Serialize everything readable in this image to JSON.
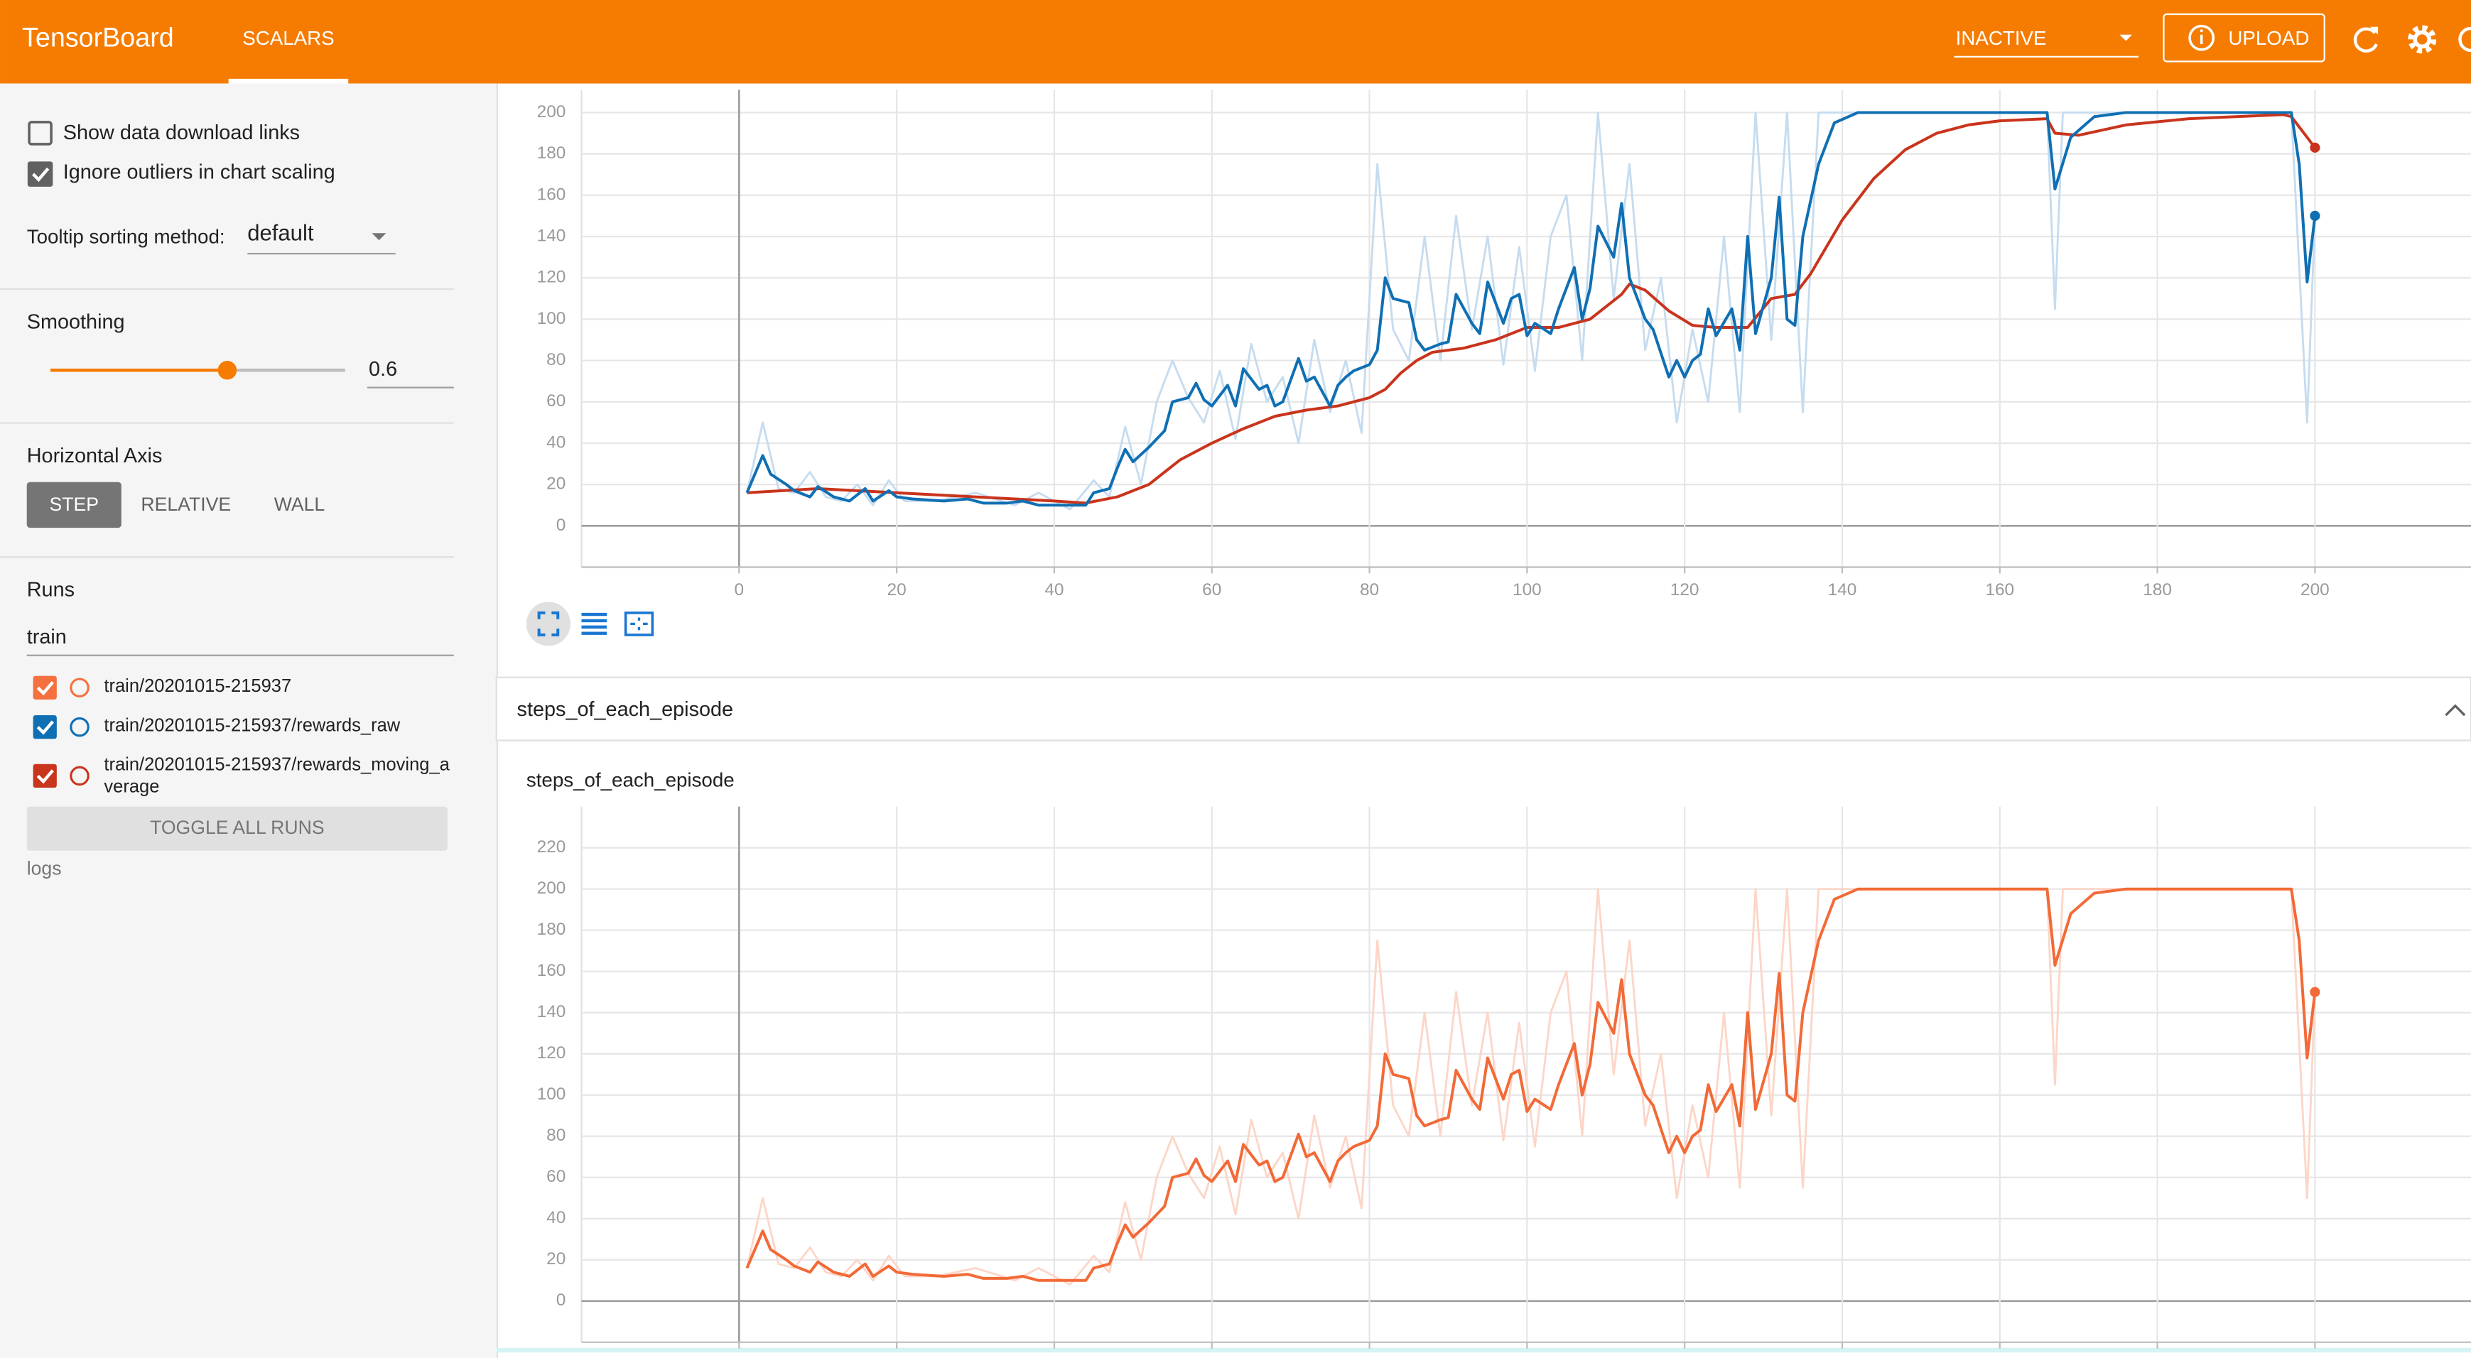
{
  "header": {
    "title": "TensorBoard",
    "tab": "SCALARS",
    "status": "INACTIVE",
    "upload": "UPLOAD"
  },
  "sidebar": {
    "show_download_links": "Show data download links",
    "ignore_outliers": "Ignore outliers in chart scaling",
    "tooltip_label": "Tooltip sorting method:",
    "tooltip_value": "default",
    "smoothing_label": "Smoothing",
    "smoothing_value": 0.6,
    "axis_label": "Horizontal Axis",
    "axis_options": [
      "STEP",
      "RELATIVE",
      "WALL"
    ],
    "runs_label": "Runs",
    "runs_filter": "train",
    "runs": [
      "train/20201015-215937",
      "train/20201015-215937/rewards_raw",
      "train/20201015-215937/rewards_moving_average"
    ],
    "toggle": "TOGGLE ALL RUNS",
    "logs": "logs"
  },
  "section_title": "steps_of_each_episode",
  "chart_data": [
    {
      "type": "line",
      "xlim": [
        -20,
        220
      ],
      "xticks": [
        0,
        20,
        40,
        60,
        80,
        100,
        120,
        140,
        160,
        180,
        200
      ],
      "ylim": [
        -20,
        211
      ],
      "yticks": [
        0,
        20,
        40,
        60,
        80,
        100,
        120,
        140,
        160,
        180,
        200
      ],
      "grid": true,
      "series": [
        {
          "color": "#c6dcef",
          "x": [
            1,
            3,
            5,
            7,
            9,
            11,
            13,
            15,
            17,
            19,
            21,
            25,
            30,
            35,
            38,
            42,
            45,
            47,
            49,
            51,
            53,
            55,
            57,
            59,
            61,
            63,
            65,
            67,
            69,
            71,
            73,
            75,
            77,
            79,
            81,
            83,
            85,
            87,
            89,
            91,
            93,
            95,
            97,
            99,
            101,
            103,
            105,
            107,
            109,
            111,
            113,
            115,
            117,
            119,
            121,
            123,
            125,
            127,
            129,
            131,
            133,
            135,
            137,
            142,
            166,
            167,
            168,
            197,
            199,
            200
          ],
          "values": [
            16,
            50,
            18,
            16,
            26,
            14,
            12,
            20,
            10,
            22,
            12,
            12,
            16,
            10,
            16,
            8,
            22,
            14,
            48,
            20,
            60,
            80,
            62,
            50,
            75,
            42,
            88,
            60,
            72,
            40,
            90,
            55,
            80,
            45,
            175,
            95,
            80,
            140,
            80,
            150,
            95,
            140,
            78,
            135,
            75,
            140,
            160,
            80,
            200,
            110,
            175,
            85,
            120,
            50,
            95,
            60,
            140,
            55,
            200,
            90,
            200,
            55,
            200,
            200,
            200,
            105,
            200,
            200,
            50,
            150
          ]
        },
        {
          "color": "#c9341c",
          "last_point_marker": true,
          "x": [
            1,
            10,
            20,
            30,
            40,
            44,
            48,
            52,
            56,
            60,
            64,
            68,
            72,
            76,
            80,
            82,
            84,
            86,
            88,
            92,
            96,
            100,
            104,
            108,
            110,
            112,
            113,
            115,
            118,
            121,
            124,
            128,
            131,
            134,
            136,
            140,
            144,
            148,
            152,
            156,
            160,
            166,
            167,
            170,
            176,
            184,
            196,
            197,
            199,
            200
          ],
          "values": [
            16,
            18,
            16,
            14,
            12,
            11,
            14,
            20,
            32,
            40,
            47,
            53,
            56,
            58,
            62,
            66,
            74,
            80,
            84,
            86,
            90,
            96,
            96,
            100,
            106,
            112,
            117,
            114,
            104,
            97,
            96,
            96,
            110,
            112,
            122,
            148,
            168,
            182,
            190,
            194,
            196,
            197,
            190,
            189,
            194,
            197,
            199,
            198,
            188,
            183
          ]
        },
        {
          "color": "#0f6fb3",
          "last_point_marker": true,
          "x": [
            1,
            3,
            4,
            6,
            7,
            9,
            10,
            12,
            14,
            16,
            17,
            19,
            20,
            22,
            26,
            29,
            31,
            34,
            36,
            38,
            41,
            44,
            45,
            47,
            48,
            49,
            50,
            52,
            54,
            55,
            57,
            58,
            59,
            60,
            62,
            63,
            64,
            66,
            67,
            68,
            69,
            71,
            72,
            73,
            75,
            76,
            77,
            78,
            80,
            81,
            82,
            83,
            85,
            86,
            87,
            89,
            90,
            91,
            93,
            94,
            95,
            97,
            98,
            99,
            100,
            101,
            103,
            104,
            106,
            107,
            108,
            109,
            111,
            112,
            113,
            115,
            116,
            118,
            119,
            120,
            121,
            122,
            123,
            124,
            126,
            127,
            128,
            129,
            131,
            132,
            133,
            134,
            135,
            137,
            139,
            142,
            166,
            167,
            169,
            172,
            176,
            197,
            198,
            199,
            200
          ],
          "values": [
            16,
            34,
            25,
            20,
            17,
            14,
            19,
            14,
            12,
            18,
            12,
            17,
            14,
            13,
            12,
            13,
            11,
            11,
            12,
            10,
            10,
            10,
            16,
            18,
            28,
            37,
            31,
            38,
            46,
            60,
            62,
            69,
            61,
            58,
            68,
            58,
            76,
            66,
            68,
            58,
            60,
            81,
            70,
            72,
            58,
            68,
            72,
            75,
            78,
            85,
            120,
            110,
            108,
            90,
            85,
            88,
            89,
            112,
            98,
            93,
            118,
            98,
            110,
            112,
            92,
            98,
            93,
            105,
            125,
            100,
            115,
            145,
            130,
            156,
            120,
            100,
            95,
            72,
            80,
            72,
            80,
            83,
            105,
            92,
            105,
            85,
            140,
            93,
            120,
            159,
            100,
            97,
            140,
            175,
            195,
            200,
            200,
            163,
            188,
            198,
            200,
            200,
            175,
            118,
            150
          ]
        }
      ]
    },
    {
      "type": "line",
      "title": "steps_of_each_episode",
      "xlim": [
        -20,
        220
      ],
      "xticks": [
        0,
        20,
        40,
        60,
        80,
        100,
        120,
        140,
        160,
        180,
        200
      ],
      "ylim": [
        -20,
        240
      ],
      "yticks": [
        0,
        20,
        40,
        60,
        80,
        100,
        120,
        140,
        160,
        180,
        200,
        220
      ],
      "grid": true,
      "series": [
        {
          "color": "#fcd6c8",
          "x": [
            1,
            3,
            5,
            7,
            9,
            11,
            13,
            15,
            17,
            19,
            21,
            25,
            30,
            35,
            38,
            42,
            45,
            47,
            49,
            51,
            53,
            55,
            57,
            59,
            61,
            63,
            65,
            67,
            69,
            71,
            73,
            75,
            77,
            79,
            81,
            83,
            85,
            87,
            89,
            91,
            93,
            95,
            97,
            99,
            101,
            103,
            105,
            107,
            109,
            111,
            113,
            115,
            117,
            119,
            121,
            123,
            125,
            127,
            129,
            131,
            133,
            135,
            137,
            142,
            166,
            167,
            168,
            197,
            199,
            200
          ],
          "values": [
            16,
            50,
            18,
            16,
            26,
            14,
            12,
            20,
            10,
            22,
            12,
            12,
            16,
            10,
            16,
            8,
            22,
            14,
            48,
            20,
            60,
            80,
            62,
            50,
            75,
            42,
            88,
            60,
            72,
            40,
            90,
            55,
            80,
            45,
            175,
            95,
            80,
            140,
            80,
            150,
            95,
            140,
            78,
            135,
            75,
            140,
            160,
            80,
            200,
            110,
            175,
            85,
            120,
            50,
            95,
            60,
            140,
            55,
            200,
            90,
            200,
            55,
            200,
            200,
            200,
            105,
            200,
            200,
            50,
            150
          ]
        },
        {
          "color": "#f26a37",
          "last_point_marker": true,
          "x": [
            1,
            3,
            4,
            6,
            7,
            9,
            10,
            12,
            14,
            16,
            17,
            19,
            20,
            22,
            26,
            29,
            31,
            34,
            36,
            38,
            41,
            44,
            45,
            47,
            48,
            49,
            50,
            52,
            54,
            55,
            57,
            58,
            59,
            60,
            62,
            63,
            64,
            66,
            67,
            68,
            69,
            71,
            72,
            73,
            75,
            76,
            77,
            78,
            80,
            81,
            82,
            83,
            85,
            86,
            87,
            89,
            90,
            91,
            93,
            94,
            95,
            97,
            98,
            99,
            100,
            101,
            103,
            104,
            106,
            107,
            108,
            109,
            111,
            112,
            113,
            115,
            116,
            118,
            119,
            120,
            121,
            122,
            123,
            124,
            126,
            127,
            128,
            129,
            131,
            132,
            133,
            134,
            135,
            137,
            139,
            142,
            166,
            167,
            169,
            172,
            176,
            197,
            198,
            199,
            200
          ],
          "values": [
            16,
            34,
            25,
            20,
            17,
            14,
            19,
            14,
            12,
            18,
            12,
            17,
            14,
            13,
            12,
            13,
            11,
            11,
            12,
            10,
            10,
            10,
            16,
            18,
            28,
            37,
            31,
            38,
            46,
            60,
            62,
            69,
            61,
            58,
            68,
            58,
            76,
            66,
            68,
            58,
            60,
            81,
            70,
            72,
            58,
            68,
            72,
            75,
            78,
            85,
            120,
            110,
            108,
            90,
            85,
            88,
            89,
            112,
            98,
            93,
            118,
            98,
            110,
            112,
            92,
            98,
            93,
            105,
            125,
            100,
            115,
            145,
            130,
            156,
            120,
            100,
            95,
            72,
            80,
            72,
            80,
            83,
            105,
            92,
            105,
            85,
            140,
            93,
            120,
            159,
            100,
            97,
            140,
            175,
            195,
            200,
            200,
            163,
            188,
            198,
            200,
            200,
            175,
            118,
            150
          ]
        }
      ]
    }
  ]
}
